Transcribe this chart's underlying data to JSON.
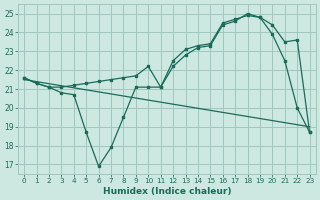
{
  "xlabel": "Humidex (Indice chaleur)",
  "background_color": "#cce8e0",
  "grid_color": "#a0c8be",
  "line_color": "#1a6b5a",
  "xlim": [
    -0.5,
    23.5
  ],
  "ylim": [
    16.5,
    25.5
  ],
  "yticks": [
    17,
    18,
    19,
    20,
    21,
    22,
    23,
    24,
    25
  ],
  "xticks": [
    0,
    1,
    2,
    3,
    4,
    5,
    6,
    7,
    8,
    9,
    10,
    11,
    12,
    13,
    14,
    15,
    16,
    17,
    18,
    19,
    20,
    21,
    22,
    23
  ],
  "line1_x": [
    0,
    1,
    2,
    3,
    4,
    5,
    6,
    7,
    8,
    9,
    10,
    11,
    12,
    13,
    14,
    15,
    16,
    17,
    18,
    19,
    20,
    21,
    22,
    23
  ],
  "line1_y": [
    21.6,
    21.3,
    21.1,
    20.8,
    20.7,
    18.7,
    16.9,
    17.9,
    19.5,
    21.1,
    21.1,
    21.1,
    22.2,
    22.8,
    23.2,
    23.3,
    24.4,
    24.6,
    25.0,
    24.8,
    23.9,
    22.5,
    20.0,
    18.7
  ],
  "line2_x": [
    0,
    1,
    2,
    3,
    4,
    5,
    6,
    7,
    8,
    9,
    10,
    11,
    12,
    13,
    14,
    15,
    16,
    17,
    18,
    19,
    20,
    21,
    22,
    23
  ],
  "line2_y": [
    21.6,
    21.3,
    21.1,
    21.1,
    21.2,
    21.3,
    21.4,
    21.5,
    21.6,
    21.7,
    22.2,
    21.1,
    22.5,
    23.1,
    23.3,
    23.4,
    24.5,
    24.7,
    24.9,
    24.8,
    24.4,
    23.5,
    23.6,
    18.7
  ],
  "line3_x": [
    0,
    23
  ],
  "line3_y": [
    21.5,
    19.0
  ]
}
